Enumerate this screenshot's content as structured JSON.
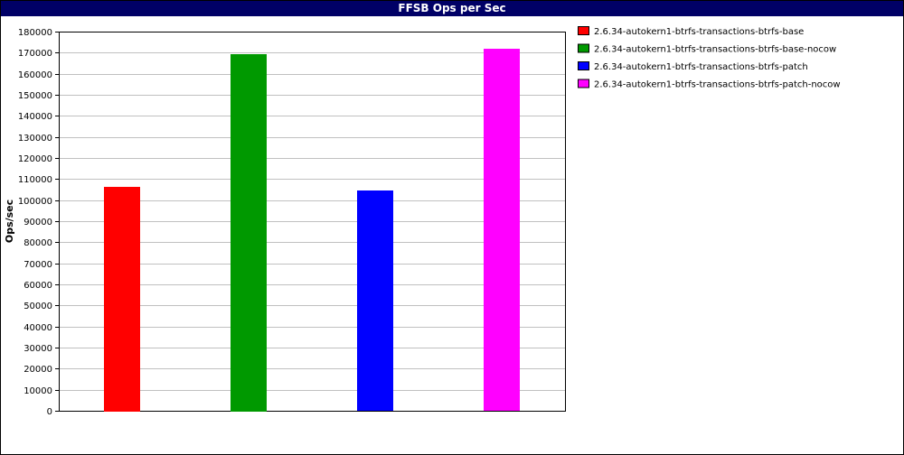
{
  "chart_data": {
    "type": "bar",
    "title": "FFSB Ops per Sec",
    "ylabel": "Ops/sec",
    "xlabel": "",
    "ylim": [
      0,
      180000
    ],
    "yticks": [
      0,
      10000,
      20000,
      30000,
      40000,
      50000,
      60000,
      70000,
      80000,
      90000,
      100000,
      110000,
      120000,
      130000,
      140000,
      150000,
      160000,
      170000,
      180000
    ],
    "grid": true,
    "legend_position": "right",
    "series": [
      {
        "name": "2.6.34-autokern1-btrfs-transactions-btrfs-base",
        "value": 106500,
        "color": "#ff0000"
      },
      {
        "name": "2.6.34-autokern1-btrfs-transactions-btrfs-base-nocow",
        "value": 169500,
        "color": "#009900"
      },
      {
        "name": "2.6.34-autokern1-btrfs-transactions-btrfs-patch",
        "value": 104500,
        "color": "#0000ff"
      },
      {
        "name": "2.6.34-autokern1-btrfs-transactions-btrfs-patch-nocow",
        "value": 172000,
        "color": "#ff00ff"
      }
    ]
  }
}
